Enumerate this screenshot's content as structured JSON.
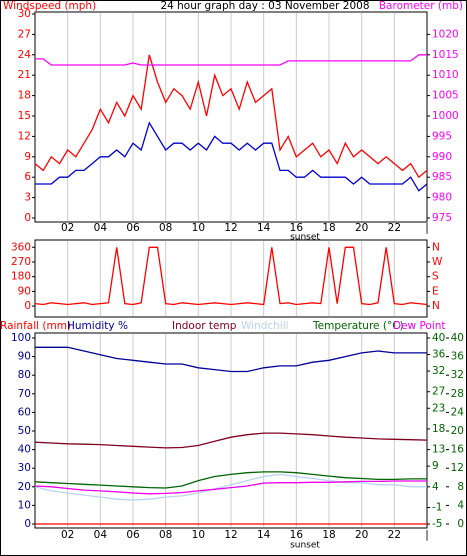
{
  "chart_data": [
    {
      "type": "line",
      "title": "24 hour graph day : 03 November 2008",
      "ylabel": "Windspeed (mph)",
      "y2label": "Barometer (mb)",
      "annotation": "sunset",
      "x": [
        0,
        0.5,
        1,
        1.5,
        2,
        2.5,
        3,
        3.5,
        4,
        4.5,
        5,
        5.5,
        6,
        6.5,
        7,
        7.5,
        8,
        8.5,
        9,
        9.5,
        10,
        10.5,
        11,
        11.5,
        12,
        12.5,
        13,
        13.5,
        14,
        14.5,
        15,
        15.5,
        16,
        16.5,
        17,
        17.5,
        18,
        18.5,
        19,
        19.5,
        20,
        20.5,
        21,
        21.5,
        22,
        22.5,
        23,
        23.5,
        24
      ],
      "series": [
        {
          "color": "#ff0000",
          "values": [
            8,
            7,
            9,
            8,
            10,
            9,
            11,
            13,
            16,
            14,
            17,
            15,
            18,
            16,
            24,
            20,
            17,
            19,
            18,
            16,
            20,
            15,
            21,
            18,
            19,
            16,
            20,
            17,
            18,
            19,
            10,
            12,
            9,
            10,
            11,
            9,
            10,
            8,
            11,
            9,
            10,
            9,
            8,
            9,
            8,
            7,
            8,
            6,
            7
          ]
        },
        {
          "color": "#0000cc",
          "values": [
            5,
            5,
            5,
            6,
            6,
            7,
            7,
            8,
            9,
            9,
            10,
            9,
            11,
            10,
            14,
            12,
            10,
            11,
            11,
            10,
            11,
            10,
            12,
            11,
            11,
            10,
            11,
            10,
            11,
            11,
            7,
            7,
            6,
            6,
            7,
            6,
            6,
            6,
            6,
            5,
            6,
            5,
            5,
            5,
            5,
            5,
            6,
            4,
            5
          ]
        },
        {
          "color": "#ff00ff",
          "axis": "y2",
          "values": [
            1014,
            1014,
            1012.5,
            1012.5,
            1012.5,
            1012.5,
            1012.5,
            1012.5,
            1012.5,
            1012.5,
            1012.5,
            1012.5,
            1013,
            1012.5,
            1012.5,
            1012.5,
            1012.5,
            1012.5,
            1012.5,
            1012.5,
            1012.5,
            1012.5,
            1012.5,
            1012.5,
            1012.5,
            1012.5,
            1012.5,
            1012.5,
            1012.5,
            1012.5,
            1012.5,
            1013.5,
            1013.5,
            1013.5,
            1013.5,
            1013.5,
            1013.5,
            1013.5,
            1013.5,
            1013.5,
            1013.5,
            1013.5,
            1013.5,
            1013.5,
            1013.5,
            1013.5,
            1013.5,
            1015,
            1015
          ]
        }
      ],
      "xlim": [
        0,
        24
      ],
      "xticks": [
        {
          "value": 2,
          "label": "02"
        },
        {
          "value": 4,
          "label": "04"
        },
        {
          "value": 6,
          "label": "06"
        },
        {
          "value": 8,
          "label": "08"
        },
        {
          "value": 10,
          "label": "10"
        },
        {
          "value": 12,
          "label": "12"
        },
        {
          "value": 14,
          "label": "14"
        },
        {
          "value": 16,
          "label": "16"
        },
        {
          "value": 18,
          "label": "18"
        },
        {
          "value": 20,
          "label": "20"
        },
        {
          "value": 22,
          "label": "22"
        },
        {
          "value": 24,
          "label": "|"
        }
      ],
      "ylim": [
        0,
        30
      ],
      "yticks": [
        0,
        3,
        6,
        9,
        12,
        15,
        18,
        21,
        24,
        27,
        30
      ],
      "y2lim": [
        975,
        1025
      ],
      "y2ticks": [
        975,
        980,
        985,
        990,
        995,
        1000,
        1005,
        1010,
        1015,
        1020
      ],
      "grid": true
    },
    {
      "type": "line",
      "x": [
        0,
        0.5,
        1,
        1.5,
        2,
        2.5,
        3,
        3.5,
        4,
        4.5,
        5,
        5.5,
        6,
        6.5,
        7,
        7.5,
        8,
        8.5,
        9,
        9.5,
        10,
        10.5,
        11,
        11.5,
        12,
        12.5,
        13,
        13.5,
        14,
        14.5,
        15,
        15.5,
        16,
        16.5,
        17,
        17.5,
        18,
        18.5,
        19,
        19.5,
        20,
        20.5,
        21,
        21.5,
        22,
        22.5,
        23,
        23.5,
        24
      ],
      "series": [
        {
          "color": "#ff0000",
          "values": [
            15,
            10,
            20,
            15,
            10,
            15,
            20,
            10,
            15,
            20,
            360,
            15,
            10,
            20,
            360,
            360,
            15,
            10,
            20,
            15,
            10,
            15,
            20,
            15,
            10,
            15,
            20,
            15,
            10,
            360,
            15,
            20,
            10,
            15,
            20,
            15,
            360,
            15,
            360,
            360,
            15,
            10,
            20,
            360,
            15,
            10,
            20,
            15,
            10
          ]
        }
      ],
      "xlim": [
        0,
        24
      ],
      "ylim": [
        -30,
        380
      ],
      "yticks": [
        0,
        90,
        180,
        270,
        360
      ],
      "y2lim": [
        -30,
        380
      ],
      "y2ticks": [
        {
          "value": 0,
          "label": "N"
        },
        {
          "value": 90,
          "label": "E"
        },
        {
          "value": 180,
          "label": "S"
        },
        {
          "value": 270,
          "label": "W"
        },
        {
          "value": 360,
          "label": "N"
        }
      ],
      "grid": true
    },
    {
      "type": "line",
      "annotation": "sunset",
      "x": [
        0,
        1,
        2,
        3,
        4,
        5,
        6,
        7,
        8,
        9,
        10,
        11,
        12,
        13,
        14,
        15,
        16,
        17,
        18,
        19,
        20,
        21,
        22,
        23,
        24
      ],
      "series": [
        {
          "name": "Rainfall (mm)",
          "color": "#ff0000",
          "values": [
            0,
            0,
            0,
            0,
            0,
            0,
            0,
            0,
            0,
            0,
            0,
            0,
            0,
            0,
            0,
            0,
            0,
            0,
            0,
            0,
            0,
            0,
            0,
            0,
            0
          ]
        },
        {
          "name": "Humidity %",
          "color": "#000099",
          "values": [
            95,
            95,
            95,
            93,
            91,
            89,
            88,
            87,
            86,
            86,
            84,
            83,
            82,
            82,
            84,
            85,
            85,
            87,
            88,
            90,
            92,
            93,
            92,
            92,
            92
          ]
        },
        {
          "name": "Indoor temp",
          "color": "#800020",
          "axis": "y2",
          "values": [
            14.8,
            14.6,
            14.4,
            14.3,
            14.2,
            14.0,
            13.8,
            13.6,
            13.4,
            13.5,
            14,
            15,
            16,
            16.6,
            17,
            17,
            16.8,
            16.6,
            16.3,
            16,
            15.8,
            15.6,
            15.5,
            15.4,
            15.3
          ]
        },
        {
          "name": "Windchill",
          "color": "#b8d4f0",
          "axis": "y2",
          "values": [
            4.0,
            3.0,
            2.5,
            2.0,
            1.5,
            1.0,
            0.8,
            1.0,
            1.5,
            1.8,
            2.5,
            3.5,
            4.5,
            5.5,
            6.5,
            7.0,
            6.5,
            6.0,
            5.5,
            5.0,
            5.0,
            4.5,
            4.5,
            4.0,
            4.0
          ]
        },
        {
          "name": "Temperature (°C)",
          "color": "#006400",
          "axis": "y2",
          "values": [
            5.2,
            5.0,
            4.8,
            4.6,
            4.4,
            4.2,
            4.0,
            3.8,
            3.7,
            4.2,
            5.5,
            6.5,
            7.0,
            7.4,
            7.6,
            7.6,
            7.4,
            7.0,
            6.6,
            6.2,
            6.0,
            5.8,
            5.8,
            5.9,
            5.9
          ]
        },
        {
          "name": "Dew Point",
          "color": "#ee00ee",
          "axis": "y2",
          "values": [
            4.2,
            4.0,
            3.6,
            3.2,
            3.0,
            2.8,
            2.5,
            2.3,
            2.4,
            2.6,
            3.0,
            3.4,
            3.8,
            4.2,
            4.9,
            5.0,
            5.0,
            5.1,
            5.1,
            5.2,
            5.3,
            5.3,
            5.4,
            5.4,
            5.4
          ]
        }
      ],
      "xlim": [
        0,
        24
      ],
      "xticks": [
        {
          "value": 2,
          "label": "02"
        },
        {
          "value": 4,
          "label": "04"
        },
        {
          "value": 6,
          "label": "06"
        },
        {
          "value": 8,
          "label": "08"
        },
        {
          "value": 10,
          "label": "10"
        },
        {
          "value": 12,
          "label": "12"
        },
        {
          "value": 14,
          "label": "14"
        },
        {
          "value": 16,
          "label": "16"
        },
        {
          "value": 18,
          "label": "18"
        },
        {
          "value": 20,
          "label": "20"
        },
        {
          "value": 22,
          "label": "22"
        },
        {
          "value": 24,
          "label": "|"
        }
      ],
      "ylim": [
        0,
        100
      ],
      "yticks": [
        0,
        10,
        20,
        30,
        40,
        50,
        60,
        70,
        80,
        90,
        100
      ],
      "y2lim": [
        -5,
        40
      ],
      "y2ticks": [
        -5,
        -1,
        4,
        9,
        13,
        18,
        23,
        27,
        32,
        36,
        40
      ],
      "y3lim": [
        0,
        40
      ],
      "y3ticks": [
        0,
        4,
        8,
        12,
        16,
        20,
        24,
        28,
        32,
        36,
        40
      ],
      "grid": true
    }
  ]
}
